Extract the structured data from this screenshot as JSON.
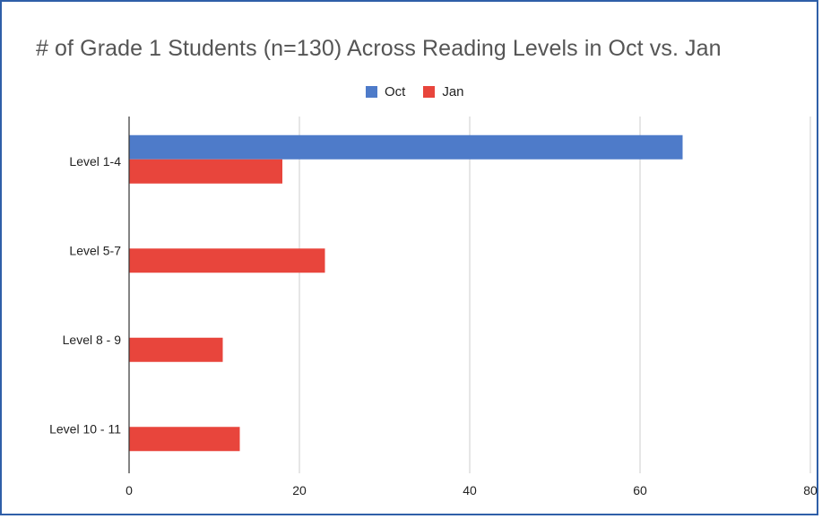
{
  "chart_data": {
    "type": "bar",
    "orientation": "horizontal",
    "title": "# of Grade 1 Students (n=130) Across Reading Levels in Oct vs. Jan",
    "categories": [
      "Level 1-4",
      "Level 5-7",
      "Level 8 - 9",
      "Level 10 - 11"
    ],
    "series": [
      {
        "name": "Oct",
        "values": [
          65,
          0,
          0,
          0
        ],
        "color": "#4e7bc9"
      },
      {
        "name": "Jan",
        "values": [
          18,
          23,
          11,
          13
        ],
        "color": "#e8453c"
      }
    ],
    "xlim": [
      0,
      80
    ],
    "xticks": [
      0,
      20,
      40,
      60,
      80
    ],
    "xlabel": "",
    "ylabel": "",
    "grid": true,
    "legend_position": "top"
  }
}
